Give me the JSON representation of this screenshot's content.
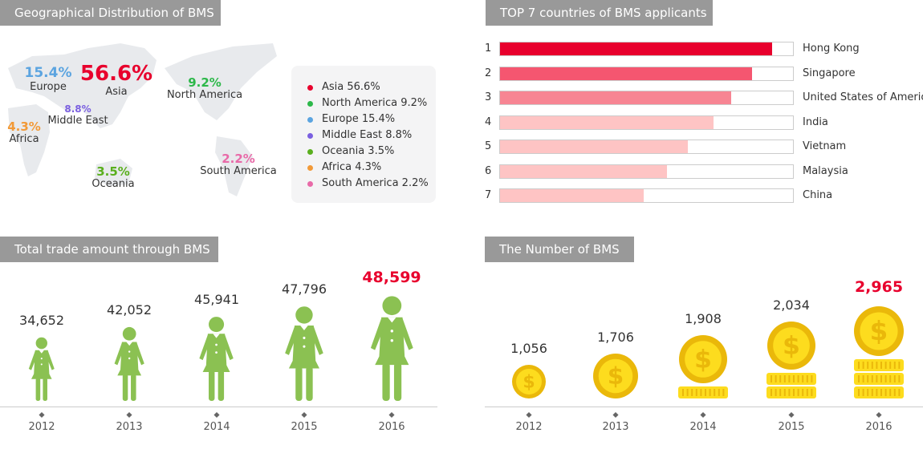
{
  "colors": {
    "accent": "#e8002d",
    "header_bg": "#999999",
    "figure": "#8bc152",
    "coin_outer": "#eab80a",
    "coin_inner": "#fddc1e"
  },
  "headers": {
    "geo": "Geographical Distribution of BMS",
    "top7": "TOP 7 countries of BMS applicants",
    "trade": "Total trade amount through BMS",
    "number": "The Number of BMS"
  },
  "chart_data": [
    {
      "type": "pie",
      "title": "Geographical Distribution of BMS",
      "regions": [
        {
          "name": "Asia",
          "pct": "56.6%",
          "value": 56.6,
          "color": "#e8002d"
        },
        {
          "name": "North America",
          "pct": "9.2%",
          "value": 9.2,
          "color": "#2db84a"
        },
        {
          "name": "Europe",
          "pct": "15.4%",
          "value": 15.4,
          "color": "#5ba4e0"
        },
        {
          "name": "Middle East",
          "pct": "8.8%",
          "value": 8.8,
          "color": "#7a5fe0"
        },
        {
          "name": "Oceania",
          "pct": "3.5%",
          "value": 3.5,
          "color": "#5aaf1e"
        },
        {
          "name": "Africa",
          "pct": "4.3%",
          "value": 4.3,
          "color": "#f29a38"
        },
        {
          "name": "South America",
          "pct": "2.2%",
          "value": 2.2,
          "color": "#e86aa8"
        }
      ],
      "legend": [
        "Asia 56.6%",
        "North America 9.2%",
        "Europe 15.4%",
        "Middle East 8.8%",
        "Oceania 3.5%",
        "Africa 4.3%",
        "South America 2.2%"
      ]
    },
    {
      "type": "bar",
      "title": "TOP 7 countries of BMS applicants",
      "ranks": [
        "1",
        "2",
        "3",
        "4",
        "5",
        "6",
        "7"
      ],
      "categories": [
        "Hong Kong",
        "Singapore",
        "United States of America",
        "India",
        "Vietnam",
        "Malaysia",
        "China"
      ],
      "values": [
        0.93,
        0.86,
        0.79,
        0.73,
        0.64,
        0.57,
        0.49
      ],
      "colors": [
        "#e8002d",
        "#f55670",
        "#f78593",
        "#fec4c4",
        "#fec4c4",
        "#fec4c4",
        "#fec4c4"
      ]
    },
    {
      "type": "bar",
      "title": "Total trade amount through BMS",
      "categories": [
        "2012",
        "2013",
        "2014",
        "2015",
        "2016"
      ],
      "labels": [
        "34,652",
        "42,052",
        "45,941",
        "47,796",
        "48,599"
      ],
      "values": [
        34652,
        42052,
        45941,
        47796,
        48599
      ]
    },
    {
      "type": "bar",
      "title": "The Number of BMS",
      "categories": [
        "2012",
        "2013",
        "2014",
        "2015",
        "2016"
      ],
      "labels": [
        "1,056",
        "1,706",
        "1,908",
        "2,034",
        "2,965"
      ],
      "values": [
        1056,
        1706,
        1908,
        2034,
        2965
      ]
    }
  ]
}
